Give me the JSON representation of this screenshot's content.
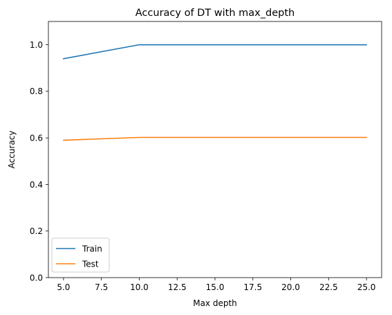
{
  "chart_data": {
    "type": "line",
    "title": "Accuracy of DT with max_depth",
    "xlabel": "Max depth",
    "ylabel": "Accuracy",
    "x": [
      5,
      10,
      15,
      20,
      25
    ],
    "series": [
      {
        "name": "Train",
        "values": [
          0.94,
          1.0,
          1.0,
          1.0,
          1.0
        ],
        "color": "#1f77b4"
      },
      {
        "name": "Test",
        "values": [
          0.59,
          0.602,
          0.602,
          0.602,
          0.602
        ],
        "color": "#ff7f0e"
      }
    ],
    "xlim": [
      4.0,
      26.0
    ],
    "ylim": [
      0.0,
      1.1
    ],
    "xticks": [
      5.0,
      7.5,
      10.0,
      12.5,
      15.0,
      17.5,
      20.0,
      22.5,
      25.0
    ],
    "xtick_labels": [
      "5.0",
      "7.5",
      "10.0",
      "12.5",
      "15.0",
      "17.5",
      "20.0",
      "22.5",
      "25.0"
    ],
    "yticks": [
      0.0,
      0.2,
      0.4,
      0.6,
      0.8,
      1.0
    ],
    "ytick_labels": [
      "0.0",
      "0.2",
      "0.4",
      "0.6",
      "0.8",
      "1.0"
    ],
    "grid": false,
    "legend_position": "lower-left"
  }
}
